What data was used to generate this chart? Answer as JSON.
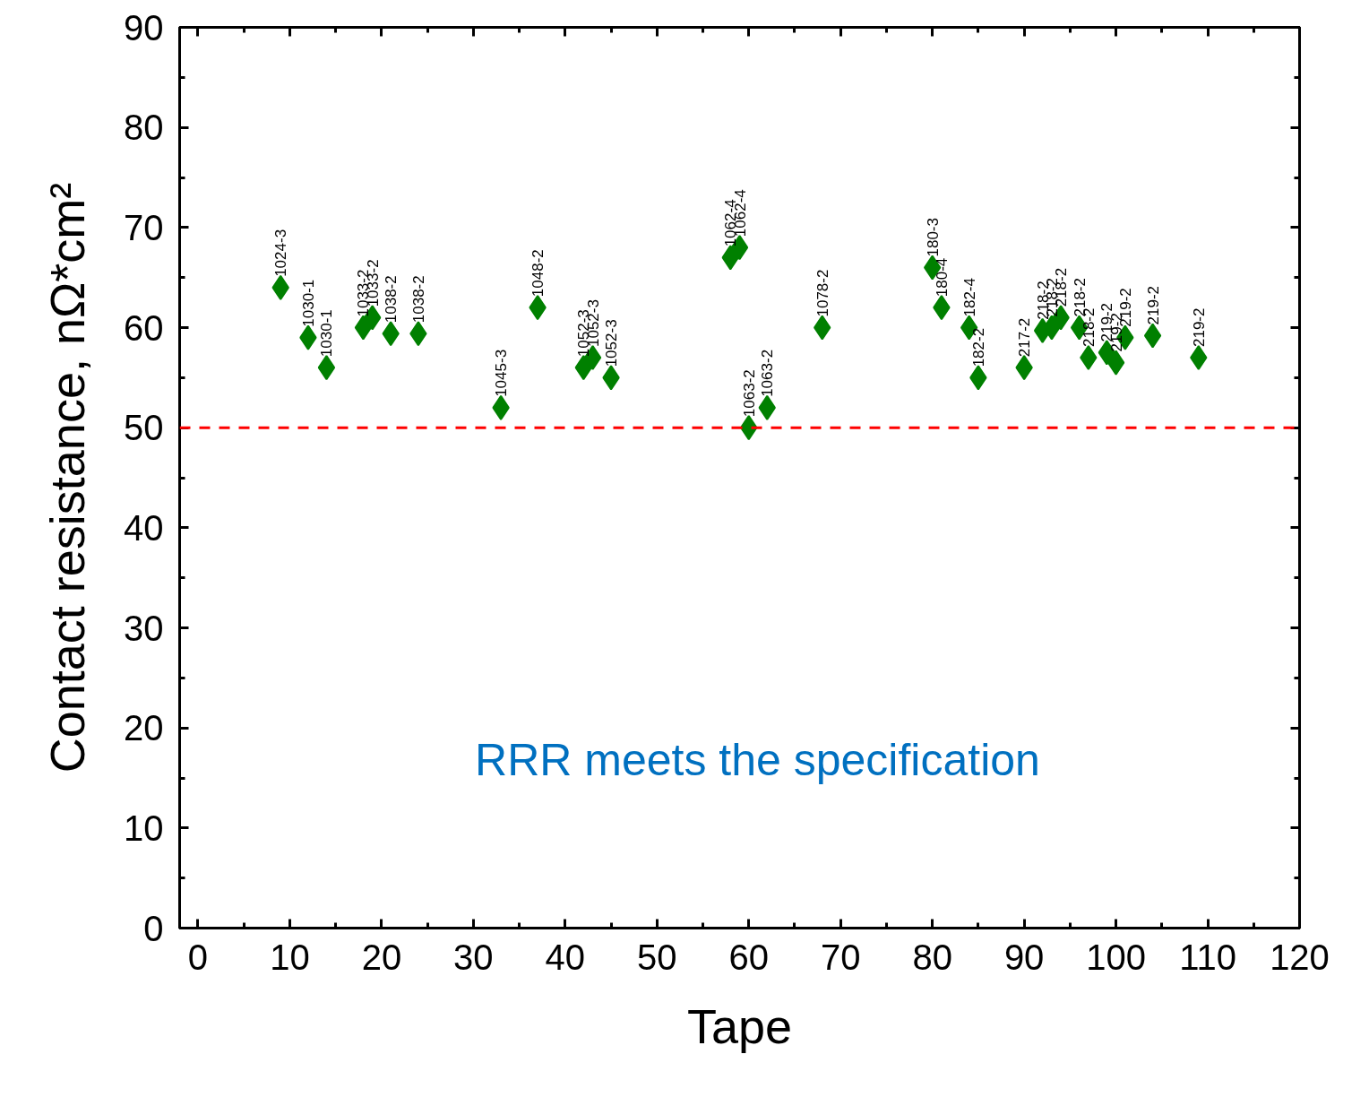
{
  "chart_data": {
    "type": "scatter",
    "xlabel": "Tape",
    "ylabel": "Contact resistance, nΩ*cm²",
    "x": [
      9,
      12,
      14,
      18,
      19,
      21,
      24,
      33,
      37,
      42,
      43,
      45,
      58,
      59,
      60,
      62,
      68,
      80,
      81,
      84,
      85,
      90,
      92,
      93,
      94,
      96,
      97,
      99,
      100,
      101,
      104,
      109
    ],
    "series": [
      {
        "color": "#008000",
        "values": [
          64,
          59,
          56,
          60,
          61,
          59.4,
          59.4,
          52,
          62,
          56,
          57,
          55,
          67,
          68,
          50,
          52,
          60,
          66,
          62,
          60,
          55,
          56,
          59.7,
          60,
          61,
          60,
          57,
          57.5,
          56.5,
          59,
          59.2,
          57
        ]
      }
    ],
    "marker": "diamond",
    "xlim": [
      -2,
      120
    ],
    "ylim": [
      0,
      90
    ],
    "xticks": [
      0,
      10,
      20,
      30,
      40,
      50,
      60,
      70,
      80,
      90,
      100,
      110,
      120
    ],
    "yticks": [
      0,
      10,
      20,
      30,
      40,
      50,
      60,
      70,
      80,
      90
    ],
    "grid": false,
    "ref_lines": [
      {
        "axis": "y",
        "value": 50,
        "color": "#ff0000",
        "line_style": "dashed"
      }
    ],
    "annotations": [
      {
        "text": "1024-3",
        "x": 9,
        "y": 64
      },
      {
        "text": "1030-1",
        "x": 12,
        "y": 59
      },
      {
        "text": "1030-1",
        "x": 14,
        "y": 56
      },
      {
        "text": "1033-2",
        "x": 18,
        "y": 60
      },
      {
        "text": "1033-2",
        "x": 19,
        "y": 61
      },
      {
        "text": "1038-2",
        "x": 21,
        "y": 59.4
      },
      {
        "text": "1038-2",
        "x": 24,
        "y": 59.4
      },
      {
        "text": "1045-3",
        "x": 33,
        "y": 52
      },
      {
        "text": "1048-2",
        "x": 37,
        "y": 62
      },
      {
        "text": "1052-3",
        "x": 42,
        "y": 56
      },
      {
        "text": "1052-3",
        "x": 43,
        "y": 57
      },
      {
        "text": "1052-3",
        "x": 45,
        "y": 55
      },
      {
        "text": "1062-4",
        "x": 58,
        "y": 67
      },
      {
        "text": "1062-4",
        "x": 59,
        "y": 68
      },
      {
        "text": "1063-2",
        "x": 60,
        "y": 50
      },
      {
        "text": "1063-2",
        "x": 62,
        "y": 52
      },
      {
        "text": "1078-2",
        "x": 68,
        "y": 60
      },
      {
        "text": "180-3",
        "x": 80,
        "y": 66
      },
      {
        "text": "180-4",
        "x": 81,
        "y": 62
      },
      {
        "text": "182-4",
        "x": 84,
        "y": 60
      },
      {
        "text": "182-2",
        "x": 85,
        "y": 55
      },
      {
        "text": "217-2",
        "x": 90,
        "y": 56
      },
      {
        "text": "218-2",
        "x": 92,
        "y": 59.7
      },
      {
        "text": "218-2",
        "x": 93,
        "y": 60
      },
      {
        "text": "218-2",
        "x": 94,
        "y": 61
      },
      {
        "text": "218-2",
        "x": 96,
        "y": 60
      },
      {
        "text": "218-2",
        "x": 97,
        "y": 57
      },
      {
        "text": "219-2",
        "x": 99,
        "y": 57.5
      },
      {
        "text": "219-2",
        "x": 100,
        "y": 56.5
      },
      {
        "text": "219-2",
        "x": 101,
        "y": 59
      },
      {
        "text": "219-2",
        "x": 104,
        "y": 59.2
      },
      {
        "text": "219-2",
        "x": 109,
        "y": 57
      },
      "RRR meets the specification"
    ]
  }
}
